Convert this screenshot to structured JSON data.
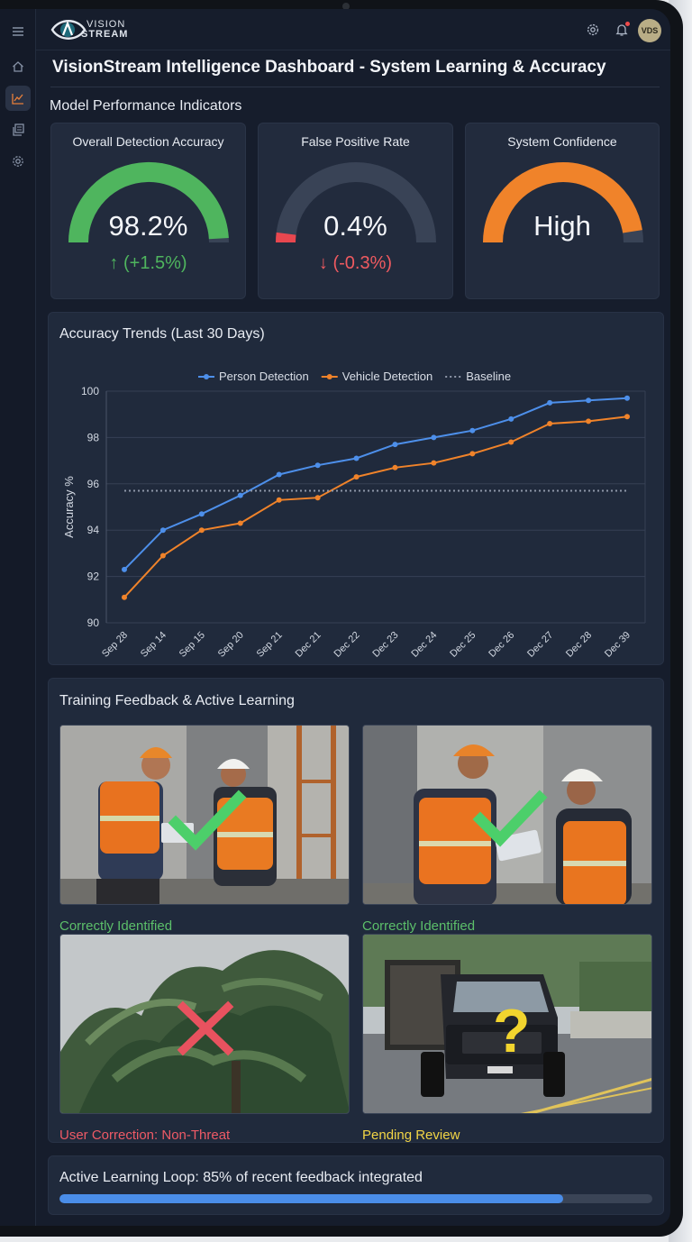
{
  "app": {
    "logo_line1": "VISION",
    "logo_line2": "STREAM",
    "user_initials": "VDS"
  },
  "page_title": "VisionStream Intelligence Dashboard - System Learning & Accuracy",
  "sections": {
    "kpi": "Model Performance Indicators",
    "trends": "Accuracy Trends (Last 30 Days)",
    "training": "Training Feedback & Active Learning"
  },
  "kpis": [
    {
      "title": "Overall Detection Accuracy",
      "value": "98.2%",
      "delta": "(+1.5%)",
      "delta_arrow": "↑",
      "fill_fraction": 0.982,
      "color": "#4fb55e",
      "delta_color": "#4fb55e"
    },
    {
      "title": "False Positive Rate",
      "value": "0.4%",
      "delta": "(-0.3%)",
      "delta_arrow": "↓",
      "fill_fraction": 0.04,
      "color": "#e8474f",
      "delta_color": "#ef5a60"
    },
    {
      "title": "System Confidence",
      "value": "High",
      "delta": "",
      "delta_arrow": "",
      "fill_fraction": 0.95,
      "color": "#f0832a",
      "delta_color": "#f0832a"
    }
  ],
  "chart_data": {
    "type": "line",
    "title": "Accuracy Trends (Last 30 Days)",
    "xlabel": "",
    "ylabel": "Accuracy %",
    "ylim": [
      90,
      100
    ],
    "yticks": [
      90,
      92,
      94,
      96,
      98,
      100
    ],
    "grid": true,
    "legend_position": "top",
    "categories": [
      "Sep 28",
      "Sep 14",
      "Sep 15",
      "Sep 20",
      "Sep 21",
      "Dec 21",
      "Dec 22",
      "Dec 23",
      "Dec 24",
      "Dec 25",
      "Dec 26",
      "Dec 27",
      "Dec 28",
      "Dec 39"
    ],
    "series": [
      {
        "name": "Person Detection",
        "color": "#4d8fea",
        "style": "solid",
        "values": [
          92.3,
          94.0,
          94.7,
          95.5,
          96.4,
          96.8,
          97.1,
          97.7,
          98.0,
          98.3,
          98.8,
          99.5,
          99.6,
          99.7
        ]
      },
      {
        "name": "Vehicle Detection",
        "color": "#f0832a",
        "style": "solid",
        "values": [
          91.1,
          92.9,
          94.0,
          94.3,
          95.3,
          95.4,
          96.3,
          96.7,
          96.9,
          97.3,
          97.8,
          98.6,
          98.7,
          98.9
        ]
      },
      {
        "name": "Baseline",
        "color": "#8e97a8",
        "style": "dotted",
        "values": [
          95.7,
          95.7,
          95.7,
          95.7,
          95.7,
          95.7,
          95.7,
          95.7,
          95.7,
          95.7,
          95.7,
          95.7,
          95.7,
          95.7
        ]
      }
    ]
  },
  "feedback": [
    {
      "caption": "Correctly Identified",
      "status": "correct",
      "caption_color": "#5cbf6a",
      "icon": "checkmark-icon"
    },
    {
      "caption": "Correctly Identified",
      "status": "correct",
      "caption_color": "#5cbf6a",
      "icon": "checkmark-icon"
    },
    {
      "caption": "User Correction: Non-Threat",
      "status": "corrected",
      "caption_color": "#ee5a66",
      "icon": "cross-icon"
    },
    {
      "caption": "Pending Review",
      "status": "pending",
      "caption_color": "#f2d546",
      "icon": "question-icon"
    }
  ],
  "active_learning": {
    "label": "Active Learning Loop: 85% of recent feedback integrated",
    "progress": 0.85
  }
}
